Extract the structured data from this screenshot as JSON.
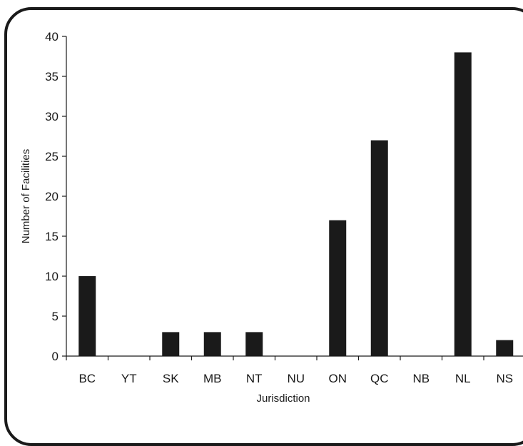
{
  "chart_data": {
    "type": "bar",
    "categories": [
      "BC",
      "YT",
      "SK",
      "MB",
      "NT",
      "NU",
      "ON",
      "QC",
      "NB",
      "NL",
      "NS"
    ],
    "values": [
      10,
      0,
      3,
      3,
      3,
      0,
      17,
      27,
      0,
      38,
      2
    ],
    "xlabel": "Jurisdiction",
    "ylabel": "Number of Facilities",
    "ylim": [
      0,
      40
    ],
    "yticks": [
      0,
      5,
      10,
      15,
      20,
      25,
      30,
      35,
      40
    ],
    "grid": false,
    "colors": {
      "bar": "#1a1a1a",
      "axis": "#1a1a1a"
    }
  }
}
